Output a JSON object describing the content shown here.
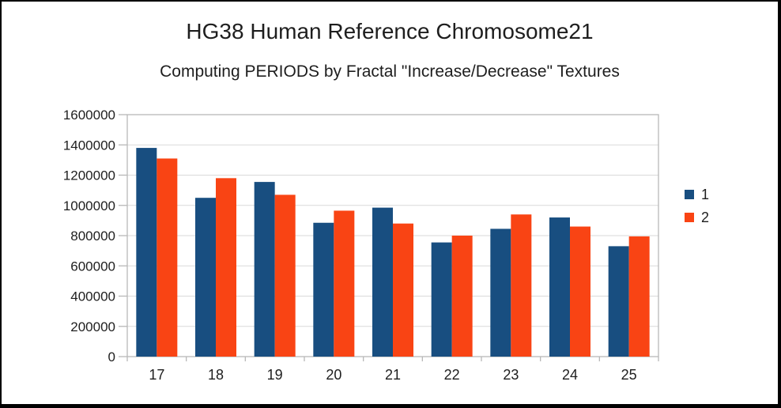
{
  "window": {
    "background_color": "#ffffff",
    "border_color": "#000000"
  },
  "chart_data": {
    "type": "bar",
    "title": "HG38 Human Reference Chromosome21",
    "subtitle": "Computing PERIODS by Fractal \"Increase/Decrease\" Textures",
    "categories": [
      "17",
      "18",
      "19",
      "20",
      "21",
      "22",
      "23",
      "24",
      "25"
    ],
    "series": [
      {
        "name": "1",
        "color": "#184e80",
        "values": [
          1380000,
          1050000,
          1155000,
          885000,
          985000,
          755000,
          845000,
          920000,
          730000
        ]
      },
      {
        "name": "2",
        "color": "#f94414",
        "values": [
          1310000,
          1180000,
          1070000,
          965000,
          880000,
          800000,
          940000,
          860000,
          795000
        ]
      }
    ],
    "xlabel": "",
    "ylabel": "",
    "ylim": [
      0,
      1600000
    ],
    "yticks": [
      0,
      200000,
      400000,
      600000,
      800000,
      1000000,
      1200000,
      1400000,
      1600000
    ],
    "grid": "horizontal",
    "legend_position": "right",
    "colors": {
      "gridline": "#d9d9d9",
      "axis": "#b8b8b8",
      "text": "#1e1e1e"
    }
  }
}
